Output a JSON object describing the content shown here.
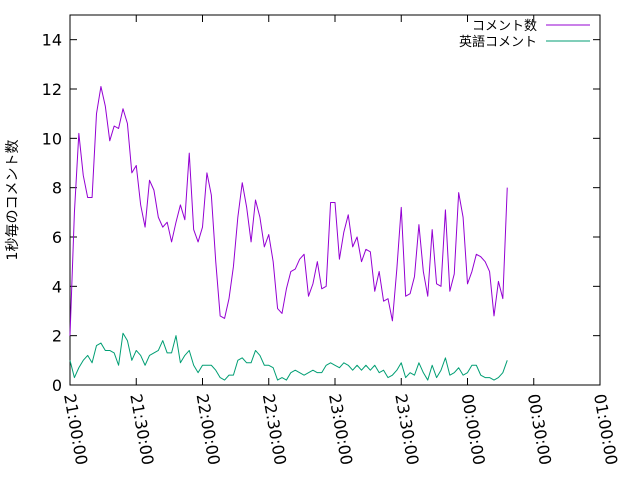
{
  "chart_data": {
    "type": "line",
    "title": "",
    "xlabel": "",
    "ylabel": "1秒毎のコメント数",
    "xlim": [
      "21:00:00",
      "01:00:00"
    ],
    "ylim": [
      0,
      15
    ],
    "y_ticks": [
      0,
      2,
      4,
      6,
      8,
      10,
      12,
      14
    ],
    "x_ticks": [
      "21:00:00",
      "21:30:00",
      "22:00:00",
      "22:30:00",
      "23:00:00",
      "23:30:00",
      "00:00:00",
      "00:30:00",
      "01:00:00"
    ],
    "grid": false,
    "legend_position": "top-right",
    "x_interval": "2 minutes",
    "x_start": "21:00:00",
    "series": [
      {
        "name": "コメント数",
        "color": "#9400d3",
        "values": [
          2.0,
          7.0,
          10.2,
          8.5,
          7.6,
          7.6,
          11.0,
          12.1,
          11.3,
          9.9,
          10.5,
          10.4,
          11.2,
          10.6,
          8.6,
          8.9,
          7.3,
          6.4,
          8.3,
          7.9,
          6.8,
          6.4,
          6.6,
          5.8,
          6.6,
          7.3,
          6.7,
          9.4,
          6.3,
          5.8,
          6.4,
          8.6,
          7.7,
          5.0,
          2.8,
          2.7,
          3.5,
          4.8,
          6.8,
          8.2,
          7.2,
          5.8,
          7.5,
          6.8,
          5.6,
          6.1,
          5.0,
          3.1,
          2.9,
          3.9,
          4.6,
          4.7,
          5.1,
          5.3,
          3.6,
          4.1,
          5.0,
          3.9,
          4.0,
          7.4,
          7.4,
          5.1,
          6.2,
          6.9,
          5.6,
          6.0,
          5.0,
          5.5,
          5.4,
          3.8,
          4.6,
          3.4,
          3.5,
          2.6,
          4.7,
          7.2,
          3.6,
          3.7,
          4.4,
          6.5,
          4.6,
          3.6,
          6.3,
          4.1,
          4.0,
          7.1,
          3.8,
          4.5,
          7.8,
          6.8,
          4.1,
          4.6,
          5.3,
          5.2,
          5.0,
          4.6,
          2.8,
          4.2,
          3.5,
          8.0
        ]
      },
      {
        "name": "英語コメント",
        "color": "#009e73",
        "values": [
          1.0,
          0.3,
          0.7,
          1.0,
          1.2,
          0.9,
          1.6,
          1.7,
          1.4,
          1.4,
          1.3,
          0.8,
          2.1,
          1.8,
          1.0,
          1.4,
          1.2,
          0.8,
          1.2,
          1.3,
          1.4,
          1.8,
          1.3,
          1.3,
          2.0,
          0.9,
          1.2,
          1.4,
          0.8,
          0.5,
          0.8,
          0.8,
          0.8,
          0.6,
          0.3,
          0.2,
          0.4,
          0.4,
          1.0,
          1.1,
          0.9,
          0.9,
          1.4,
          1.2,
          0.8,
          0.8,
          0.7,
          0.2,
          0.3,
          0.2,
          0.5,
          0.6,
          0.5,
          0.4,
          0.5,
          0.6,
          0.5,
          0.5,
          0.8,
          0.9,
          0.8,
          0.7,
          0.9,
          0.8,
          0.6,
          0.8,
          0.6,
          0.8,
          0.6,
          0.8,
          0.5,
          0.6,
          0.3,
          0.4,
          0.6,
          0.9,
          0.3,
          0.5,
          0.4,
          0.9,
          0.5,
          0.2,
          0.8,
          0.3,
          0.6,
          1.1,
          0.4,
          0.5,
          0.7,
          0.4,
          0.5,
          0.8,
          0.8,
          0.4,
          0.3,
          0.3,
          0.2,
          0.3,
          0.5,
          1.0
        ]
      }
    ]
  }
}
